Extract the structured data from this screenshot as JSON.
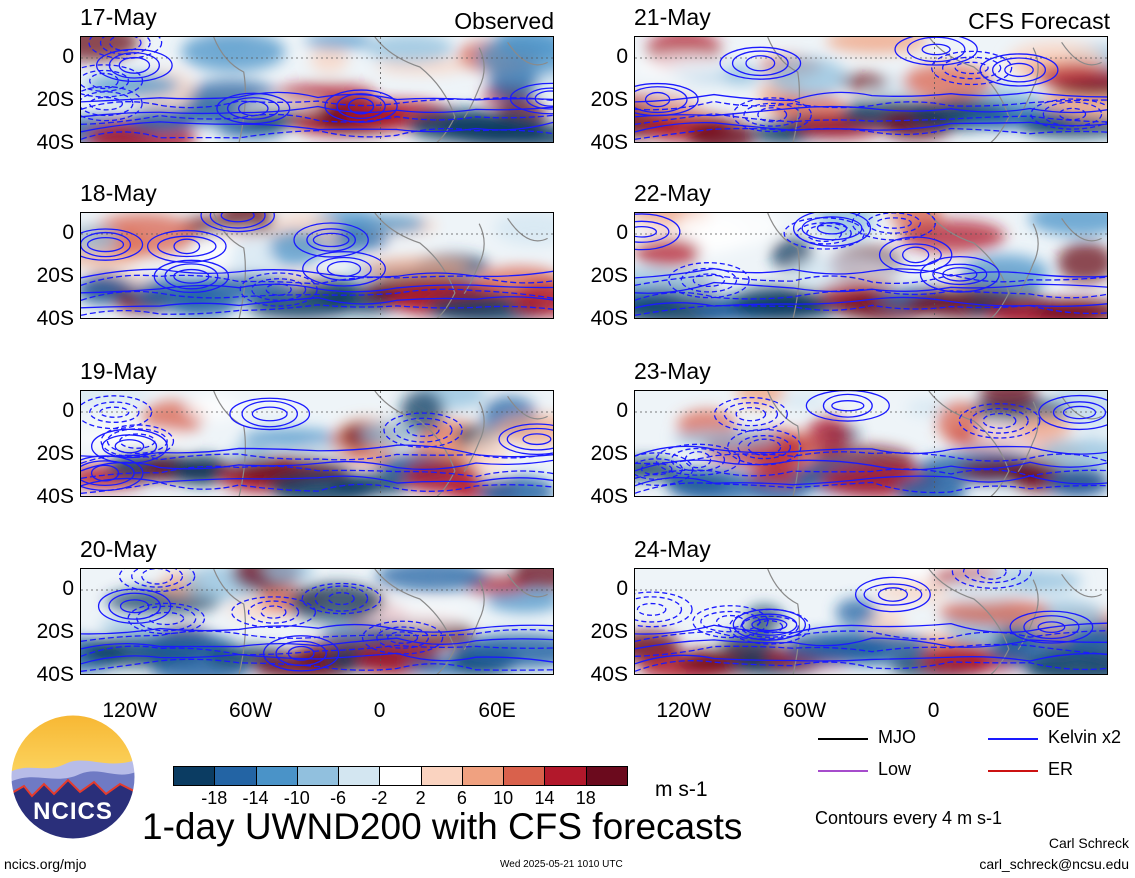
{
  "panel_labels": {
    "observed": "Observed",
    "forecast": "CFS Forecast"
  },
  "panels": [
    {
      "date": "17-May",
      "column": "left",
      "row": 0,
      "seed": 3
    },
    {
      "date": "18-May",
      "column": "left",
      "row": 1,
      "seed": 7
    },
    {
      "date": "19-May",
      "column": "left",
      "row": 2,
      "seed": 11
    },
    {
      "date": "20-May",
      "column": "left",
      "row": 3,
      "seed": 17
    },
    {
      "date": "21-May",
      "column": "right",
      "row": 0,
      "seed": 23
    },
    {
      "date": "22-May",
      "column": "right",
      "row": 1,
      "seed": 29
    },
    {
      "date": "23-May",
      "column": "right",
      "row": 2,
      "seed": 31
    },
    {
      "date": "24-May",
      "column": "right",
      "row": 3,
      "seed": 37
    }
  ],
  "y_ticks": [
    "0",
    "20S",
    "40S"
  ],
  "x_ticks": [
    "120W",
    "60W",
    "0",
    "60E"
  ],
  "colorbar": {
    "colors": [
      "#0b3c62",
      "#2364a4",
      "#4a93c8",
      "#91c0de",
      "#d3e6f1",
      "#ffffff",
      "#fad3c0",
      "#f0a180",
      "#d9614c",
      "#b2182b",
      "#6b0a1d"
    ],
    "labels": [
      "-18",
      "-14",
      "-10",
      "-6",
      "-2",
      "2",
      "6",
      "10",
      "14",
      "18"
    ],
    "units": "m s-1"
  },
  "legend": [
    {
      "label": "MJO",
      "color": "#000000"
    },
    {
      "label": "Kelvin x2",
      "color": "#1a1aff"
    },
    {
      "label": "Low",
      "color": "#a64ccc"
    },
    {
      "label": "ER",
      "color": "#cc1111"
    }
  ],
  "contour_note": "Contours every 4 m s-1",
  "title": "1-day UWND200 with CFS forecasts",
  "logo_text": "NCICS",
  "footer": {
    "url": "ncics.org/mjo",
    "timestamp": "Wed 2025-05-21 1010 UTC",
    "author": "Carl Schreck",
    "email": "carl_schreck@ncsu.edu"
  }
}
